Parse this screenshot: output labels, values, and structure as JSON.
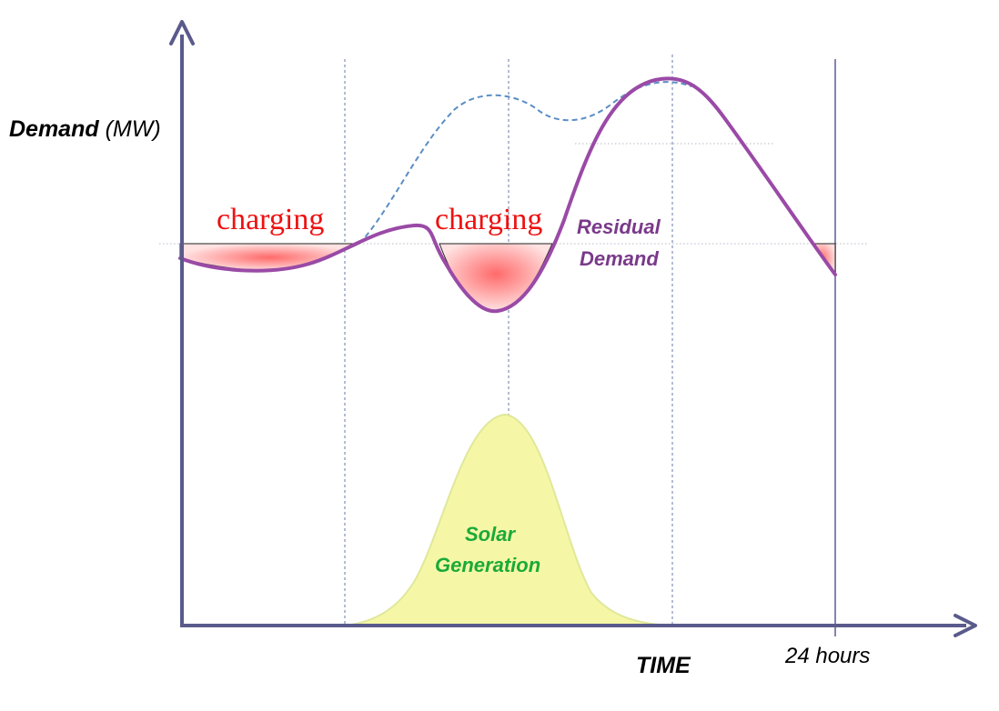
{
  "labels": {
    "y_axis_bold": "Demand",
    "y_axis_unit": " (MW)",
    "x_axis": "TIME",
    "x_end_tick": "24 hours",
    "charging_1": "charging",
    "charging_2": "charging",
    "residual_line1": "Residual",
    "residual_line2": "Demand",
    "solar_line1": "Solar",
    "solar_line2": "Generation"
  },
  "colors": {
    "axis": "#5a5a8c",
    "residual": "#9a4aa6",
    "demand_dashed": "#5b8ec4",
    "solar_fill": "#f6f7a6",
    "solar_stroke": "#dfe89a",
    "charging_text": "#ee1111",
    "charging_fill": "#ff7a7a",
    "residual_label": "#7a3a8a",
    "solar_label": "#1aaa3a",
    "guide": "#6a7aa8"
  }
}
